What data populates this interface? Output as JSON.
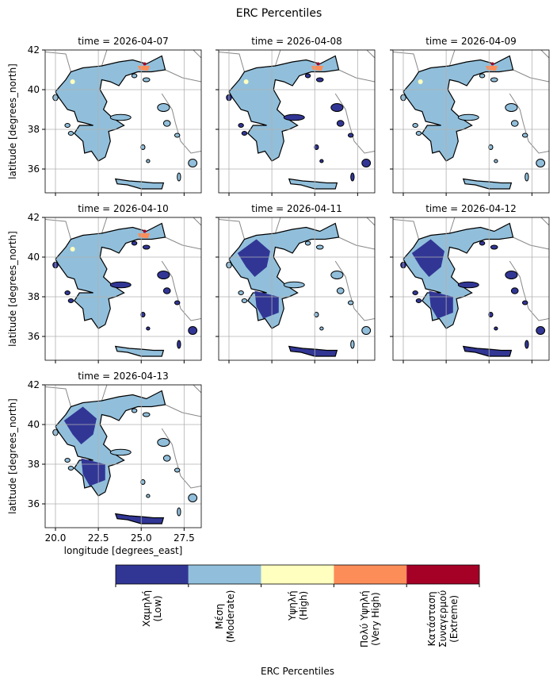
{
  "chart_data": {
    "type": "map",
    "title": "ERC Percentiles",
    "panels": [
      "time = 2026-04-07",
      "time = 2026-04-08",
      "time = 2026-04-09",
      "time = 2026-04-10",
      "time = 2026-04-11",
      "time = 2026-04-12",
      "time = 2026-04-13"
    ],
    "xlabel": "longitude [degrees_east]",
    "ylabel": "latitude [degrees_north]",
    "xlim": [
      19.4,
      28.5
    ],
    "ylim": [
      34.8,
      42
    ],
    "xticks": [
      {
        "value": 20,
        "label": "20.0"
      },
      22.5,
      {
        "value": 25,
        "label": "25.0"
      },
      27.5
    ],
    "yticks": [
      36,
      38,
      40,
      42
    ],
    "grid": true,
    "colorbar": {
      "label": "ERC Percentiles",
      "categories": [
        "Χαμηλή\n(Low)",
        "Μέση\n(Moderate)",
        "Υψηλή\n(High)",
        "Πολύ Υψηλή\n(Very High)",
        "Κατάσταση\nΣυναγερμού\n(Extreme)"
      ],
      "colors": [
        "#313695",
        "#91bfdb",
        "#ffffbf",
        "#fc8d59",
        "#a50026"
      ]
    }
  }
}
